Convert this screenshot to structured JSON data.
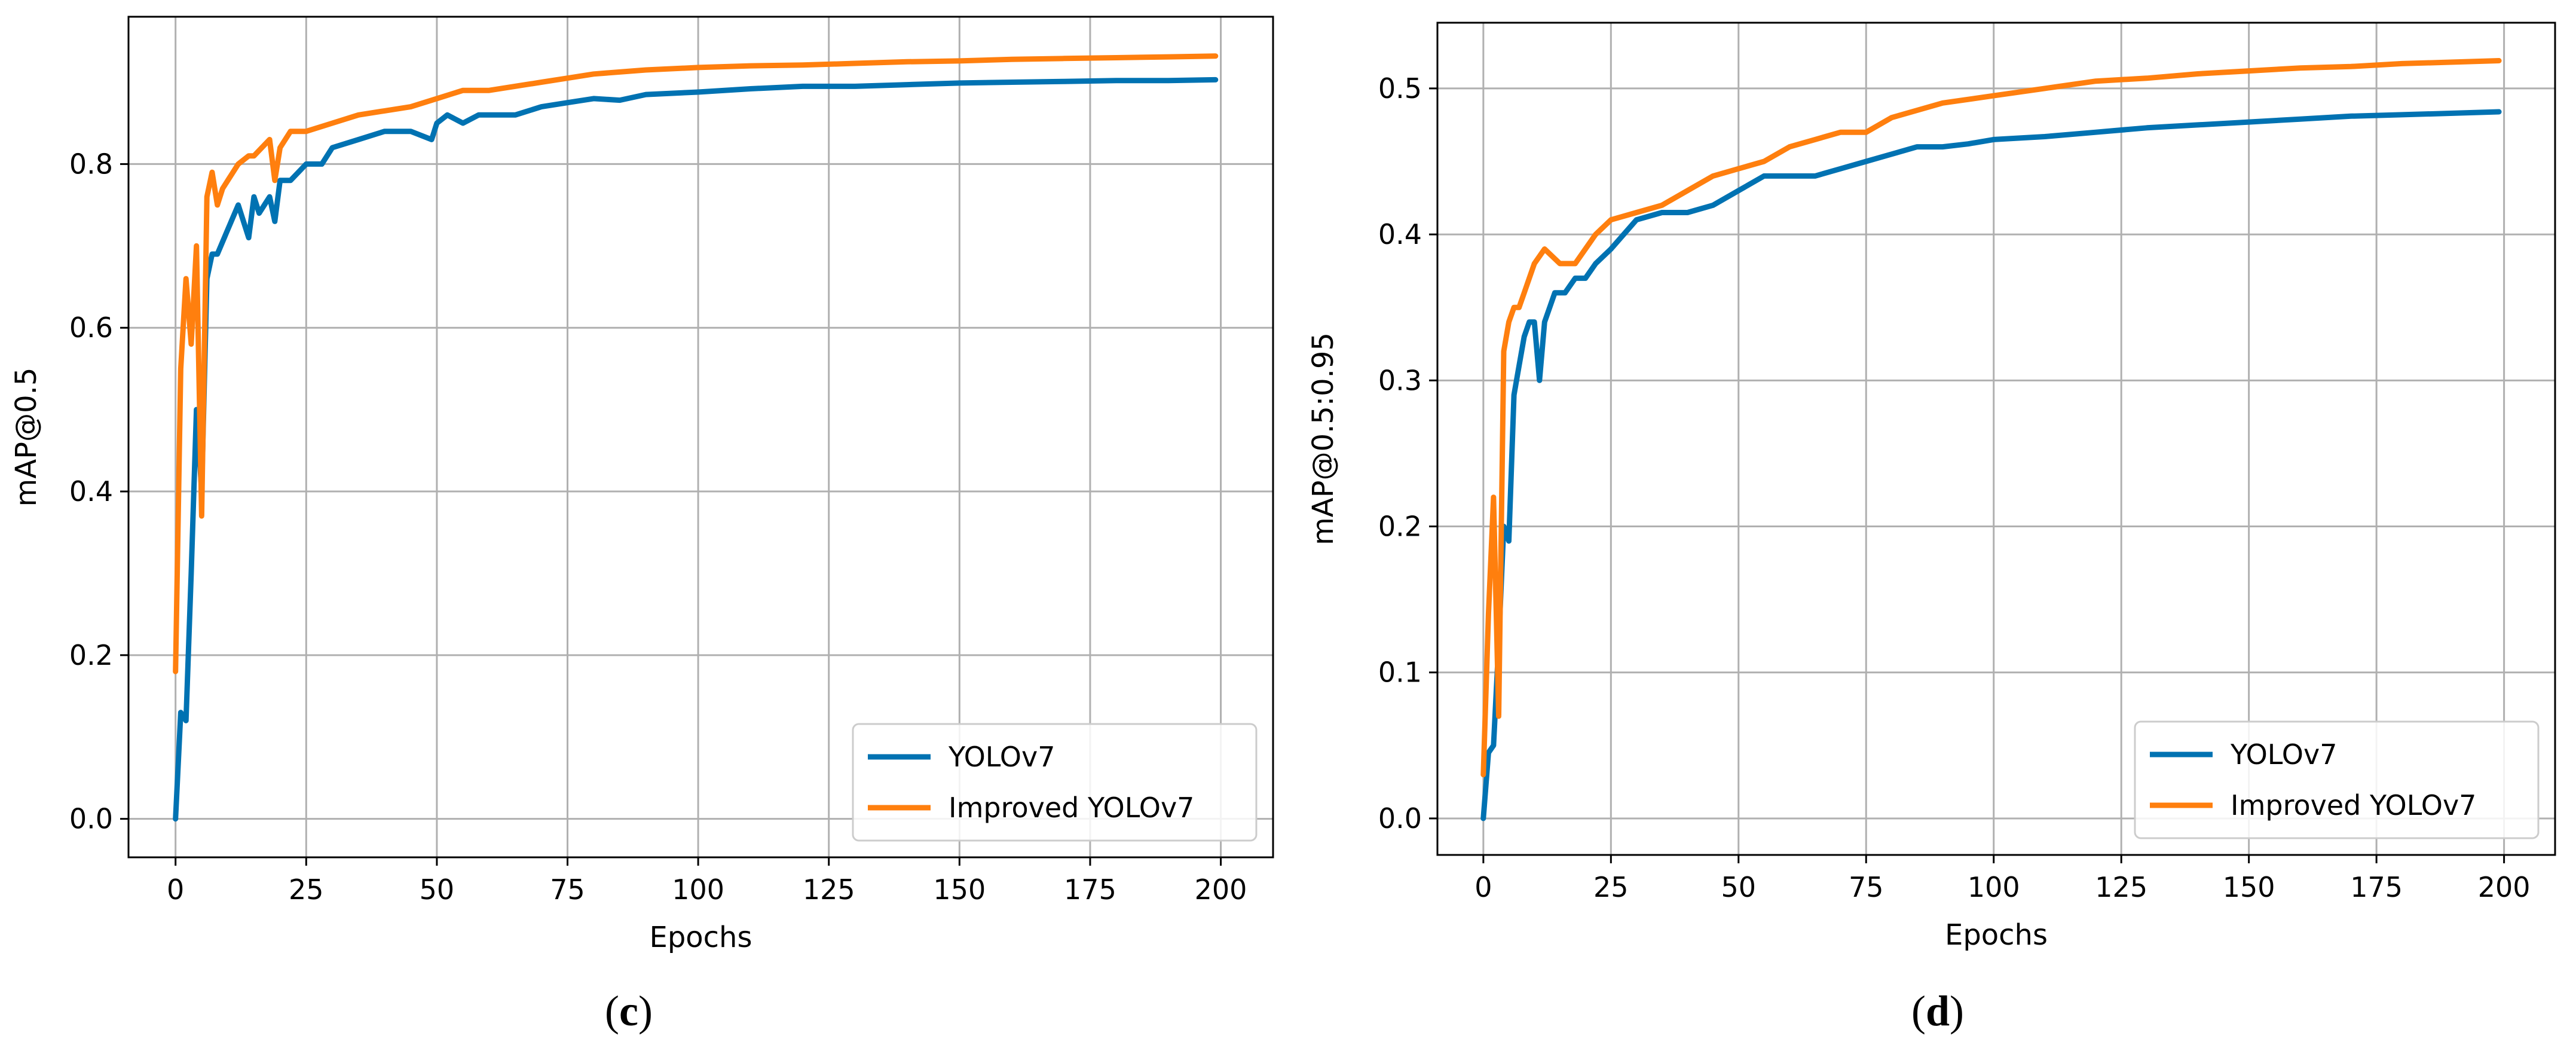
{
  "chart_data": [
    {
      "type": "line",
      "panel": "c",
      "title": "",
      "xlabel": "Epochs",
      "ylabel": "mAP@0.5",
      "xlim": [
        -9,
        210
      ],
      "ylim": [
        -0.047,
        0.98
      ],
      "xticks": [
        0,
        25,
        50,
        75,
        100,
        125,
        150,
        175,
        200
      ],
      "yticks": [
        0.0,
        0.2,
        0.4,
        0.6,
        0.8
      ],
      "ytick_decimals": 1,
      "grid": true,
      "legend_position": "bottom-right",
      "series": [
        {
          "name": "YOLOv7",
          "color": "#0072b2",
          "x": [
            0,
            1,
            2,
            3,
            4,
            5,
            6,
            7,
            8,
            10,
            12,
            14,
            15,
            16,
            18,
            19,
            20,
            22,
            25,
            28,
            30,
            35,
            40,
            45,
            49,
            50,
            52,
            55,
            58,
            60,
            65,
            70,
            75,
            80,
            85,
            90,
            100,
            110,
            120,
            130,
            140,
            150,
            160,
            170,
            180,
            190,
            199
          ],
          "y": [
            0.0,
            0.13,
            0.12,
            0.3,
            0.5,
            0.4,
            0.66,
            0.69,
            0.69,
            0.72,
            0.75,
            0.71,
            0.76,
            0.74,
            0.76,
            0.73,
            0.78,
            0.78,
            0.8,
            0.8,
            0.82,
            0.83,
            0.84,
            0.84,
            0.83,
            0.85,
            0.86,
            0.85,
            0.86,
            0.86,
            0.86,
            0.87,
            0.875,
            0.88,
            0.878,
            0.885,
            0.888,
            0.892,
            0.895,
            0.895,
            0.897,
            0.899,
            0.9,
            0.901,
            0.902,
            0.902,
            0.903
          ]
        },
        {
          "name": "Improved YOLOv7",
          "color": "#ff7f0e",
          "x": [
            0,
            1,
            2,
            3,
            4,
            5,
            6,
            7,
            8,
            9,
            10,
            12,
            14,
            15,
            18,
            19,
            20,
            22,
            25,
            30,
            35,
            40,
            45,
            50,
            55,
            60,
            70,
            75,
            80,
            90,
            100,
            110,
            120,
            130,
            140,
            150,
            160,
            170,
            180,
            190,
            199
          ],
          "y": [
            0.18,
            0.55,
            0.66,
            0.58,
            0.7,
            0.37,
            0.76,
            0.79,
            0.75,
            0.77,
            0.78,
            0.8,
            0.81,
            0.81,
            0.83,
            0.78,
            0.82,
            0.84,
            0.84,
            0.85,
            0.86,
            0.865,
            0.87,
            0.88,
            0.89,
            0.89,
            0.9,
            0.905,
            0.91,
            0.915,
            0.918,
            0.92,
            0.921,
            0.923,
            0.925,
            0.926,
            0.928,
            0.929,
            0.93,
            0.931,
            0.932
          ]
        }
      ]
    },
    {
      "type": "line",
      "panel": "d",
      "title": "",
      "xlabel": "Epochs",
      "ylabel": "mAP@0.5:0.95",
      "xlim": [
        -9,
        210
      ],
      "ylim": [
        -0.025,
        0.545
      ],
      "xticks": [
        0,
        25,
        50,
        75,
        100,
        125,
        150,
        175,
        200
      ],
      "yticks": [
        0.0,
        0.1,
        0.2,
        0.3,
        0.4,
        0.5
      ],
      "ytick_decimals": 1,
      "grid": true,
      "legend_position": "bottom-right",
      "series": [
        {
          "name": "YOLOv7",
          "color": "#0072b2",
          "x": [
            0,
            1,
            2,
            3,
            4,
            5,
            6,
            7,
            8,
            9,
            10,
            11,
            12,
            14,
            16,
            18,
            20,
            22,
            25,
            30,
            35,
            40,
            45,
            50,
            55,
            60,
            65,
            70,
            75,
            80,
            85,
            90,
            95,
            100,
            110,
            120,
            130,
            140,
            150,
            160,
            170,
            180,
            190,
            199
          ],
          "y": [
            0.0,
            0.045,
            0.05,
            0.12,
            0.2,
            0.19,
            0.29,
            0.31,
            0.33,
            0.34,
            0.34,
            0.3,
            0.34,
            0.36,
            0.36,
            0.37,
            0.37,
            0.38,
            0.39,
            0.41,
            0.415,
            0.415,
            0.42,
            0.43,
            0.44,
            0.44,
            0.44,
            0.445,
            0.45,
            0.455,
            0.46,
            0.46,
            0.462,
            0.465,
            0.467,
            0.47,
            0.473,
            0.475,
            0.477,
            0.479,
            0.481,
            0.482,
            0.483,
            0.484
          ]
        },
        {
          "name": "Improved YOLOv7",
          "color": "#ff7f0e",
          "x": [
            0,
            1,
            2,
            3,
            4,
            5,
            6,
            7,
            8,
            10,
            12,
            15,
            18,
            20,
            22,
            25,
            30,
            35,
            40,
            45,
            50,
            55,
            60,
            65,
            70,
            75,
            80,
            90,
            100,
            110,
            120,
            130,
            140,
            150,
            160,
            170,
            180,
            190,
            199
          ],
          "y": [
            0.03,
            0.14,
            0.22,
            0.07,
            0.32,
            0.34,
            0.35,
            0.35,
            0.36,
            0.38,
            0.39,
            0.38,
            0.38,
            0.39,
            0.4,
            0.41,
            0.415,
            0.42,
            0.43,
            0.44,
            0.445,
            0.45,
            0.46,
            0.465,
            0.47,
            0.47,
            0.48,
            0.49,
            0.495,
            0.5,
            0.505,
            0.507,
            0.51,
            0.512,
            0.514,
            0.515,
            0.517,
            0.518,
            0.519
          ]
        }
      ]
    }
  ],
  "captions": {
    "c": "c",
    "d": "d"
  }
}
